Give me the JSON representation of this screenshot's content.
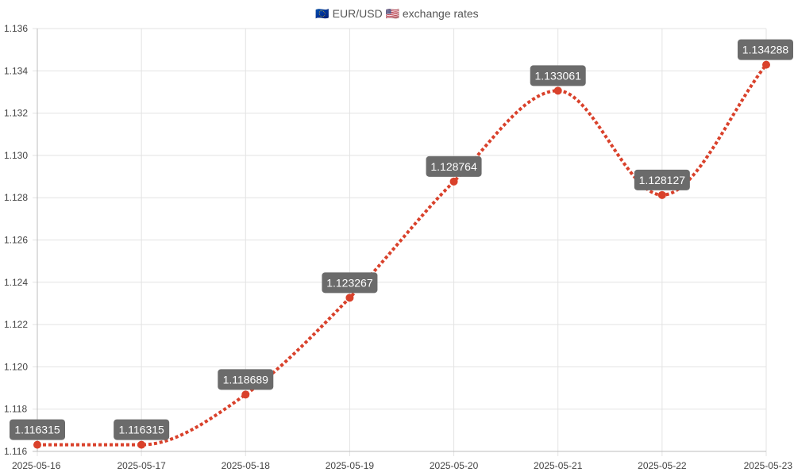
{
  "chart_data": {
    "type": "line",
    "title": "🇪🇺 EUR/USD 🇺🇸 exchange rates",
    "categories": [
      "2025-05-16",
      "2025-05-17",
      "2025-05-18",
      "2025-05-19",
      "2025-05-20",
      "2025-05-21",
      "2025-05-22",
      "2025-05-23"
    ],
    "series": [
      {
        "values": [
          1.116315,
          1.116315,
          1.118689,
          1.123267,
          1.128764,
          1.133061,
          1.128127,
          1.134288
        ],
        "data_labels": [
          "1.116315",
          "1.116315",
          "1.118689",
          "1.123267",
          "1.128764",
          "1.133061",
          "1.128127",
          "1.134288"
        ],
        "color": "#d9412b",
        "line_style": "dotted",
        "smooth": true
      }
    ],
    "yticks": [
      "1.116",
      "1.118",
      "1.120",
      "1.122",
      "1.124",
      "1.126",
      "1.128",
      "1.130",
      "1.132",
      "1.134",
      "1.136"
    ],
    "ylim": [
      1.116,
      1.136
    ],
    "grid": true,
    "legend": "none",
    "label_bg": "#6b6b6b"
  }
}
